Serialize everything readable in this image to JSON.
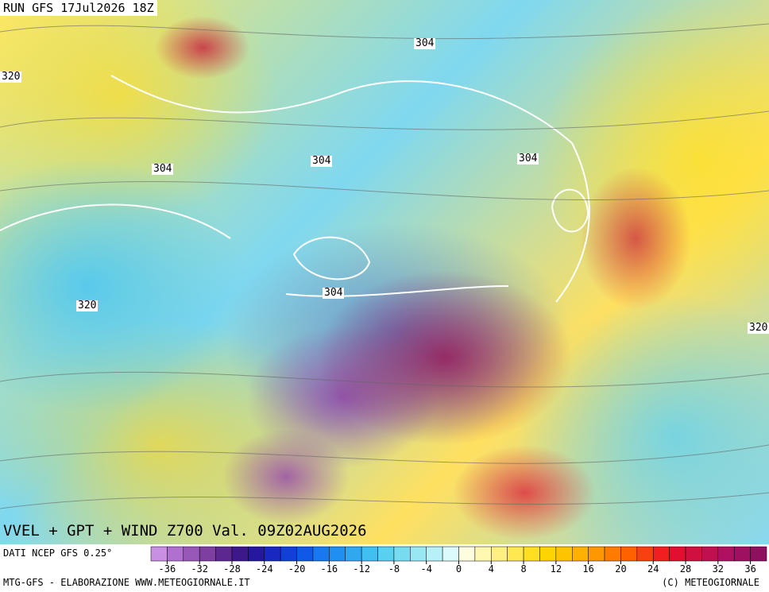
{
  "header": {
    "run": "RUN GFS 17Jul2026 18Z"
  },
  "map": {
    "title": "VVEL + GPT + WIND Z700 Val. 09Z02AUG2026",
    "contour_labels": [
      "304",
      "304",
      "304",
      "304",
      "304",
      "320",
      "320",
      "320"
    ]
  },
  "colorbar": {
    "source": "DATI NCEP GFS 0.25°",
    "lim": [
      -38,
      38
    ],
    "ticks": [
      -36,
      -32,
      -28,
      -24,
      -20,
      -16,
      -12,
      -8,
      -4,
      0,
      4,
      8,
      12,
      16,
      20,
      24,
      28,
      32,
      36
    ],
    "colors": [
      "#c890e0",
      "#b070d0",
      "#9858b8",
      "#7e40a0",
      "#5c2890",
      "#3c1888",
      "#2418a0",
      "#1828c0",
      "#1040d8",
      "#1058e8",
      "#1878f0",
      "#2090f0",
      "#30a8f0",
      "#40c0f0",
      "#58d0f0",
      "#78dcf0",
      "#98e8f4",
      "#b8f0f8",
      "#dcfafc",
      "#fffde0",
      "#fff8b0",
      "#fff080",
      "#ffe850",
      "#ffe020",
      "#ffd400",
      "#ffc400",
      "#ffb000",
      "#ff9800",
      "#ff7c00",
      "#ff6000",
      "#f84010",
      "#f02020",
      "#e01030",
      "#d01040",
      "#c01050",
      "#b01060",
      "#a01060",
      "#901060"
    ]
  },
  "footer": {
    "left": "MTG-GFS - ELABORAZIONE WWW.METEOGIORNALE.IT",
    "right": "(C) METEOGIORNALE"
  }
}
